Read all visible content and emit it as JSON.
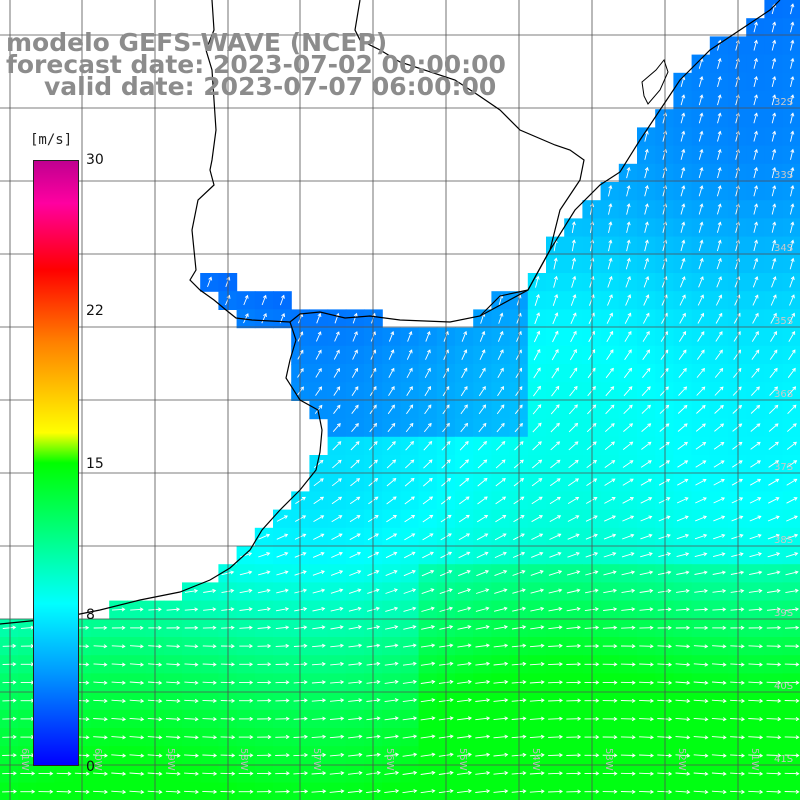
{
  "title": {
    "line1": "modelo GEFS-WAVE (NCEP)",
    "line2": "forecast date: 2023-07-02 00:00:00",
    "line3": "valid date: 2023-07-07 06:00:00"
  },
  "colorbar": {
    "unit": "[m/s]",
    "ticks": [
      {
        "label": "30",
        "value": 30
      },
      {
        "label": "22",
        "value": 22
      },
      {
        "label": "15",
        "value": 15
      },
      {
        "label": "8",
        "value": 8
      },
      {
        "label": "0",
        "value": 0
      }
    ],
    "range": [
      0,
      30
    ],
    "colors": [
      "#0000ff",
      "#00a0ff",
      "#00ffff",
      "#00ff00",
      "#ffff00",
      "#ff8000",
      "#ff0000",
      "#c00090"
    ]
  },
  "lat_labels": [
    "32S",
    "33S",
    "34S",
    "35S",
    "36S",
    "37S",
    "38S",
    "39S",
    "40S",
    "41S"
  ],
  "lon_labels": [
    "61W",
    "60W",
    "59W",
    "58W",
    "57W",
    "56W",
    "55W",
    "54W",
    "53W",
    "52W",
    "51W"
  ],
  "colors": {
    "land": "#ffffff",
    "grid": "#505050",
    "coast": "#000000",
    "title": "#8c8c8c"
  }
}
